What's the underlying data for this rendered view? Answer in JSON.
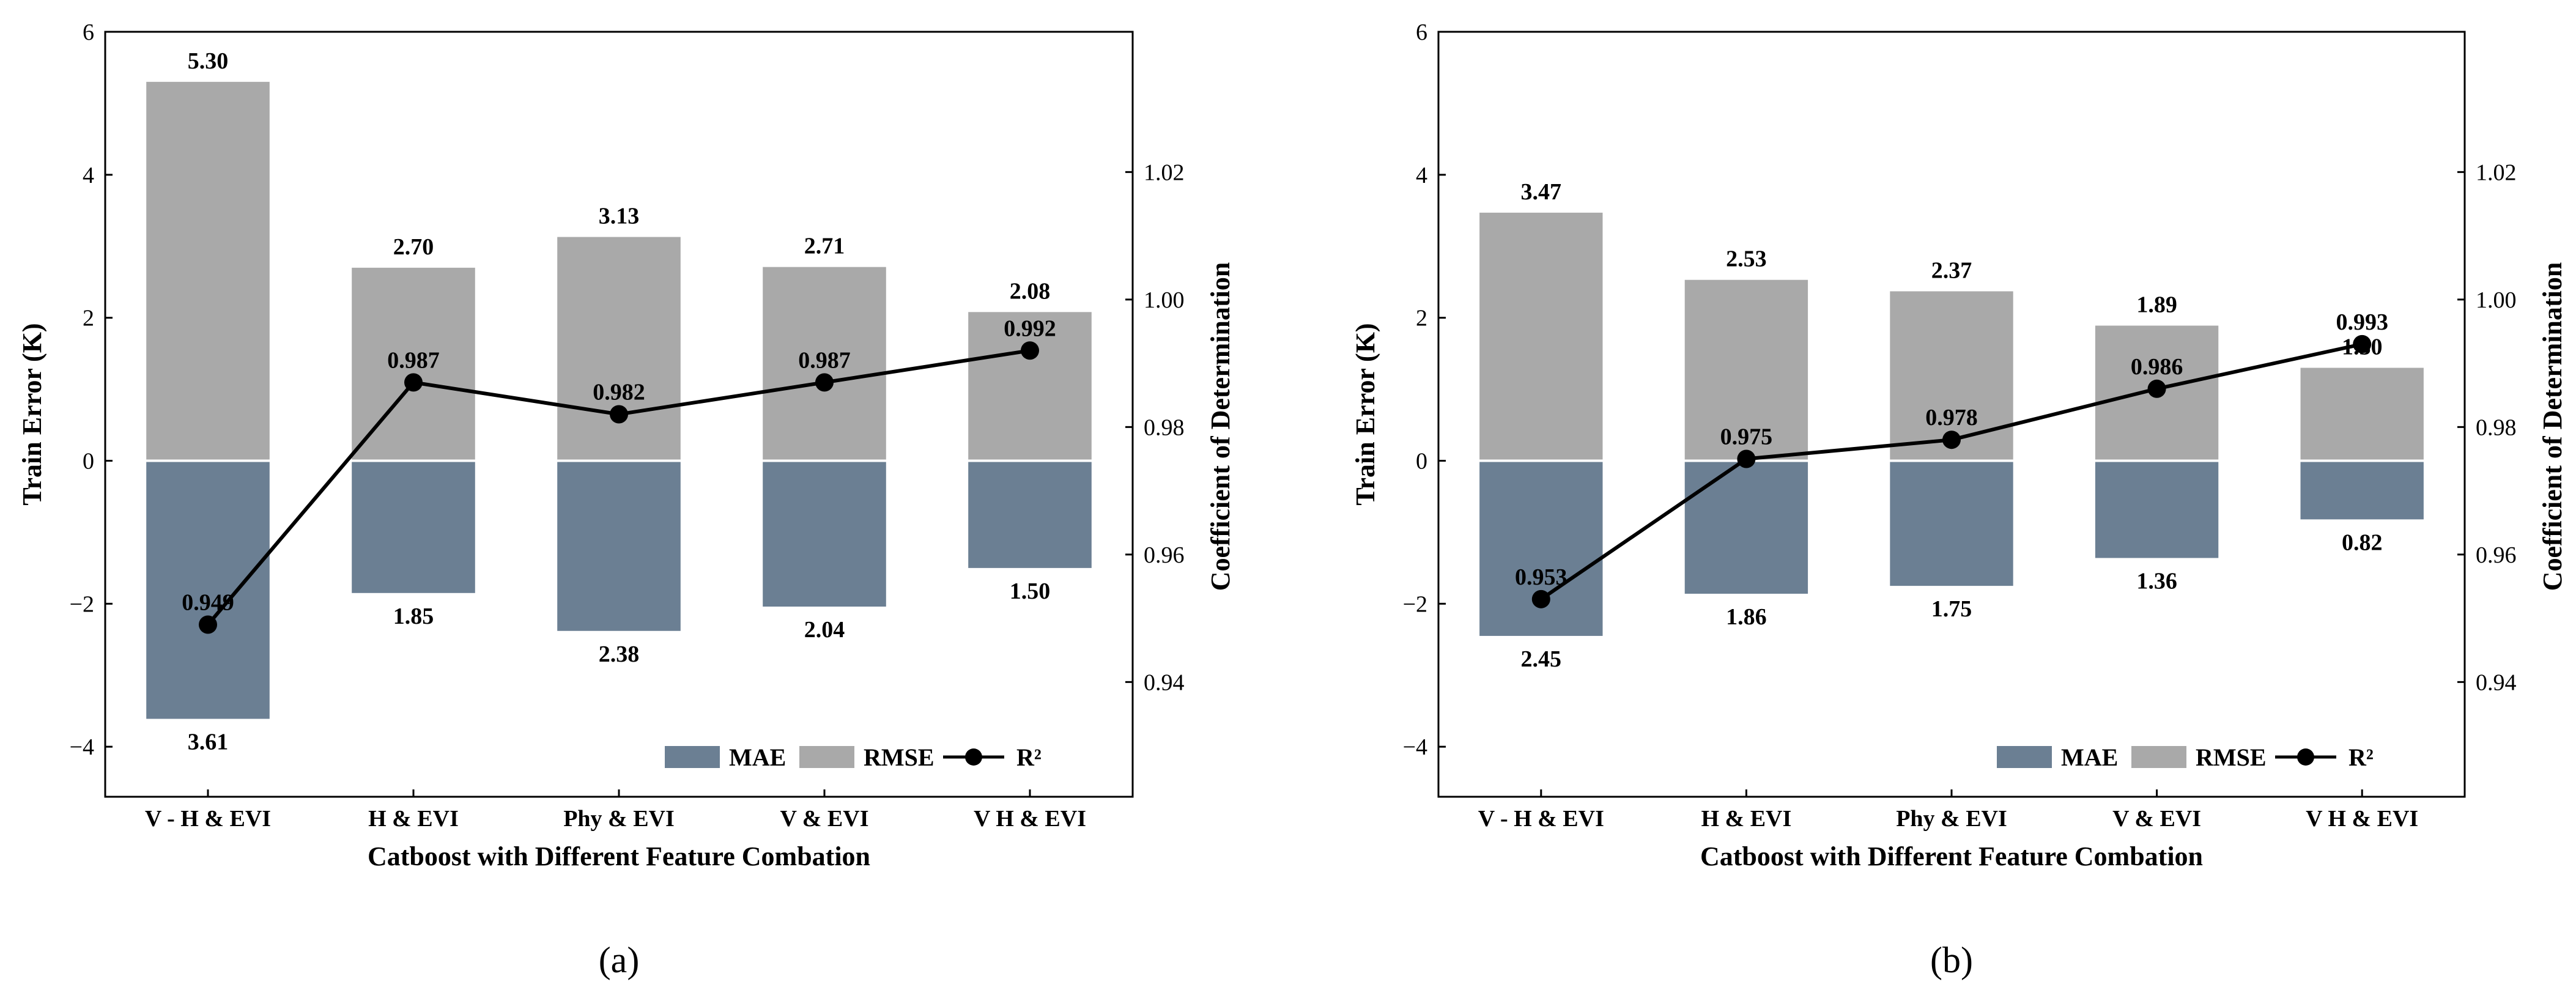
{
  "colors": {
    "mae": "#6b7f93",
    "rmse": "#a9a9a9",
    "line": "#000000"
  },
  "chart_data": [
    {
      "type": "bar",
      "caption": "(a)",
      "categories": [
        "V - H & EVI",
        "H & EVI",
        "Phy & EVI",
        "V & EVI",
        "V H & EVI"
      ],
      "series": [
        {
          "name": "MAE",
          "values": [
            3.61,
            1.85,
            2.38,
            2.04,
            1.5
          ],
          "labels": [
            "3.61",
            "1.85",
            "2.38",
            "2.04",
            "1.50"
          ]
        },
        {
          "name": "RMSE",
          "values": [
            5.3,
            2.7,
            3.13,
            2.71,
            2.08
          ],
          "labels": [
            "5.30",
            "2.70",
            "3.13",
            "2.71",
            "2.08"
          ]
        },
        {
          "name": "R2",
          "values": [
            0.949,
            0.987,
            0.982,
            0.987,
            0.992
          ],
          "labels": [
            "0.949",
            "0.987",
            "0.982",
            "0.987",
            "0.992"
          ]
        }
      ],
      "xlabel": "Catboost with Different Feature Combation",
      "ylabel": "Train Error (K)",
      "y2label": "Coefficient of Determination",
      "ylim": [
        -4.7,
        6
      ],
      "y2lim": [
        0.922,
        1.042
      ],
      "yticks": [
        "−4",
        "−2",
        "0",
        "2",
        "4",
        "6"
      ],
      "y2ticks": [
        "0.94",
        "0.96",
        "0.98",
        "1.00",
        "1.02"
      ],
      "legend": [
        "MAE",
        "RMSE",
        "R²"
      ],
      "legend_position": "bottom-right"
    },
    {
      "type": "bar",
      "caption": "(b)",
      "categories": [
        "V - H & EVI",
        "H & EVI",
        "Phy & EVI",
        "V & EVI",
        "V H & EVI"
      ],
      "series": [
        {
          "name": "MAE",
          "values": [
            2.45,
            1.86,
            1.75,
            1.36,
            0.82
          ],
          "labels": [
            "2.45",
            "1.86",
            "1.75",
            "1.36",
            "0.82"
          ]
        },
        {
          "name": "RMSE",
          "values": [
            3.47,
            2.53,
            2.37,
            1.89,
            1.3
          ],
          "labels": [
            "3.47",
            "2.53",
            "2.37",
            "1.89",
            "1.30"
          ]
        },
        {
          "name": "R2",
          "values": [
            0.953,
            0.975,
            0.978,
            0.986,
            0.993
          ],
          "labels": [
            "0.953",
            "0.975",
            "0.978",
            "0.986",
            "0.993"
          ]
        }
      ],
      "xlabel": "Catboost with Different Feature Combation",
      "ylabel": "Train Error (K)",
      "y2label": "Coefficient of Determination",
      "ylim": [
        -4.7,
        6
      ],
      "y2lim": [
        0.922,
        1.042
      ],
      "yticks": [
        "−4",
        "−2",
        "0",
        "2",
        "4",
        "6"
      ],
      "y2ticks": [
        "0.94",
        "0.96",
        "0.98",
        "1.00",
        "1.02"
      ],
      "legend": [
        "MAE",
        "RMSE",
        "R²"
      ],
      "legend_position": "bottom-right"
    }
  ]
}
